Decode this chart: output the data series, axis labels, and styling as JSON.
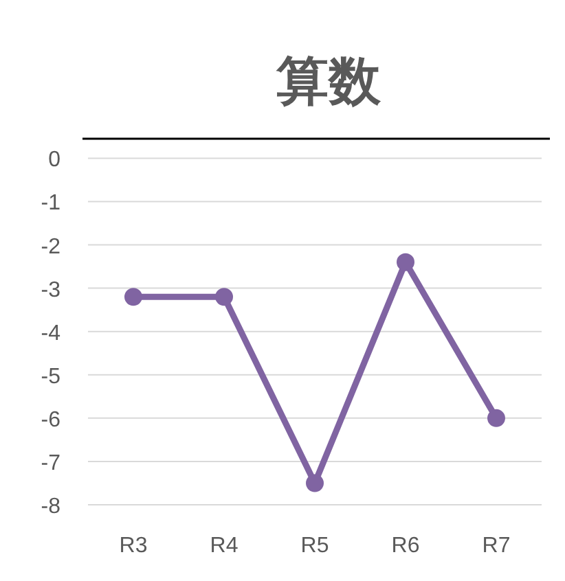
{
  "chart_data": {
    "type": "line",
    "title": "算数",
    "categories": [
      "R3",
      "R4",
      "R5",
      "R6",
      "R7"
    ],
    "values": [
      -3.2,
      -3.2,
      -7.5,
      -2.4,
      -6.0
    ],
    "color": "#8064a2",
    "ylim": [
      -8,
      0.45
    ],
    "yticks": [
      0,
      -1,
      -2,
      -3,
      -4,
      -5,
      -6,
      -7,
      -8
    ],
    "grid": "y",
    "marker": "circle",
    "line_style": "solid"
  }
}
